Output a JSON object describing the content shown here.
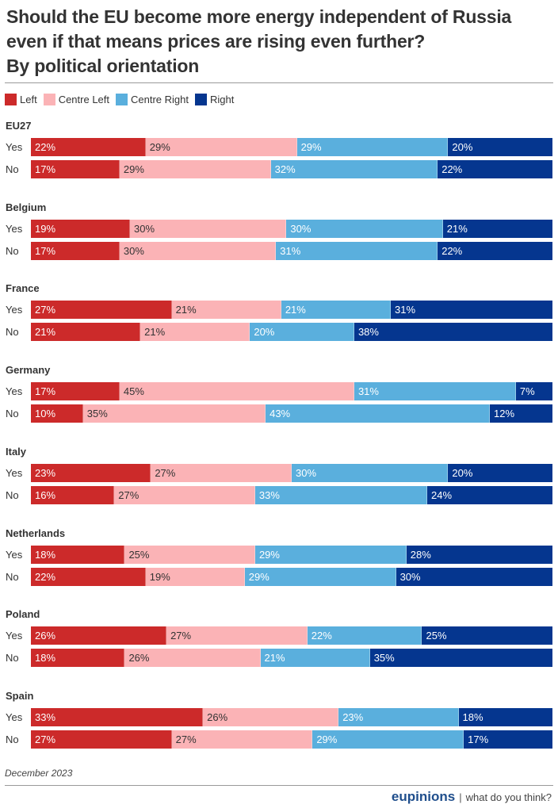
{
  "title_lines": [
    "Should the EU become more energy independent of Russia",
    "even if that means prices are rising even further?",
    "By political orientation"
  ],
  "footer": {
    "date": "December 2023",
    "brand": "eupinions",
    "separator": "|",
    "tagline": "what do you think?"
  },
  "chart_data": {
    "type": "bar",
    "orientation": "horizontal",
    "stacked": true,
    "normalized_to": 100,
    "title": "Should the EU become more energy independent of Russia even if that means prices are rising even further? By political orientation",
    "xlabel": "",
    "ylabel": "",
    "legend_position": "top-left",
    "grid": false,
    "series_names": [
      "Left",
      "Centre Left",
      "Centre Right",
      "Right"
    ],
    "colors": {
      "Left": "#cc2a2a",
      "Centre Left": "#fbb3b6",
      "Centre Right": "#5aafdd",
      "Right": "#05368f"
    },
    "text_colors": {
      "Left": "#ffffff",
      "Centre Left": "#333333",
      "Centre Right": "#ffffff",
      "Right": "#ffffff"
    },
    "row_labels": [
      "Yes",
      "No"
    ],
    "groups": [
      {
        "name": "EU27",
        "rows": [
          {
            "label": "Yes",
            "values": [
              22,
              29,
              29,
              20
            ]
          },
          {
            "label": "No",
            "values": [
              17,
              29,
              32,
              22
            ]
          }
        ]
      },
      {
        "name": "Belgium",
        "rows": [
          {
            "label": "Yes",
            "values": [
              19,
              30,
              30,
              21
            ]
          },
          {
            "label": "No",
            "values": [
              17,
              30,
              31,
              22
            ]
          }
        ]
      },
      {
        "name": "France",
        "rows": [
          {
            "label": "Yes",
            "values": [
              27,
              21,
              21,
              31
            ]
          },
          {
            "label": "No",
            "values": [
              21,
              21,
              20,
              38
            ]
          }
        ]
      },
      {
        "name": "Germany",
        "rows": [
          {
            "label": "Yes",
            "values": [
              17,
              45,
              31,
              7
            ]
          },
          {
            "label": "No",
            "values": [
              10,
              35,
              43,
              12
            ]
          }
        ]
      },
      {
        "name": "Italy",
        "rows": [
          {
            "label": "Yes",
            "values": [
              23,
              27,
              30,
              20
            ]
          },
          {
            "label": "No",
            "values": [
              16,
              27,
              33,
              24
            ]
          }
        ]
      },
      {
        "name": "Netherlands",
        "rows": [
          {
            "label": "Yes",
            "values": [
              18,
              25,
              29,
              28
            ]
          },
          {
            "label": "No",
            "values": [
              22,
              19,
              29,
              30
            ]
          }
        ]
      },
      {
        "name": "Poland",
        "rows": [
          {
            "label": "Yes",
            "values": [
              26,
              27,
              22,
              25
            ]
          },
          {
            "label": "No",
            "values": [
              18,
              26,
              21,
              35
            ]
          }
        ]
      },
      {
        "name": "Spain",
        "rows": [
          {
            "label": "Yes",
            "values": [
              33,
              26,
              23,
              18
            ]
          },
          {
            "label": "No",
            "values": [
              27,
              27,
              29,
              17
            ]
          }
        ]
      }
    ]
  }
}
